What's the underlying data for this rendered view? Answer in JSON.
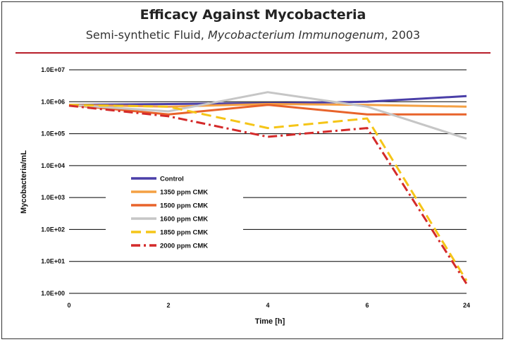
{
  "header": {
    "title": "Efficacy Against Mycobacteria",
    "subtitle_prefix": "Semi-synthetic Fluid, ",
    "subtitle_italic": "Mycobacterium Immunogenum",
    "subtitle_suffix": ", 2003",
    "rule_color": "#b81e2a"
  },
  "chart_data": {
    "type": "line",
    "title": "",
    "xlabel": "Time [h]",
    "ylabel": "Mycobacteria/mL",
    "y_scale": "log",
    "ylim": [
      1,
      10000000
    ],
    "y_ticks": [
      1,
      10,
      100,
      1000,
      10000,
      100000,
      1000000,
      10000000
    ],
    "y_tick_labels": [
      "1.0E+00",
      "1.0E+01",
      "1.0E+02",
      "1.0E+03",
      "1.0E+04",
      "1.0E+05",
      "1.0E+06",
      "1.0E+07"
    ],
    "categories": [
      "0",
      "2",
      "4",
      "6",
      "24"
    ],
    "grid": "horizontal",
    "legend_position": "center-left",
    "series": [
      {
        "name": "Control",
        "color": "#4a3fa8",
        "dash": "solid",
        "values": [
          800000,
          850000,
          900000,
          1000000,
          1500000
        ]
      },
      {
        "name": "1350 ppm CMK",
        "color": "#f4a043",
        "dash": "solid",
        "values": [
          800000,
          700000,
          850000,
          800000,
          700000
        ]
      },
      {
        "name": "1500 ppm CMK",
        "color": "#e8632b",
        "dash": "solid",
        "values": [
          800000,
          400000,
          800000,
          400000,
          400000
        ]
      },
      {
        "name": "1600 ppm CMK",
        "color": "#c6c6c6",
        "dash": "solid",
        "values": [
          800000,
          500000,
          2000000,
          700000,
          70000
        ]
      },
      {
        "name": "1850 ppm CMK",
        "color": "#f5c518",
        "dash": "dashed",
        "values": [
          800000,
          700000,
          150000,
          300000,
          2.5
        ]
      },
      {
        "name": "2000 ppm CMK",
        "color": "#d42a2a",
        "dash": "dashdot",
        "values": [
          750000,
          350000,
          80000,
          150000,
          2
        ]
      }
    ]
  }
}
